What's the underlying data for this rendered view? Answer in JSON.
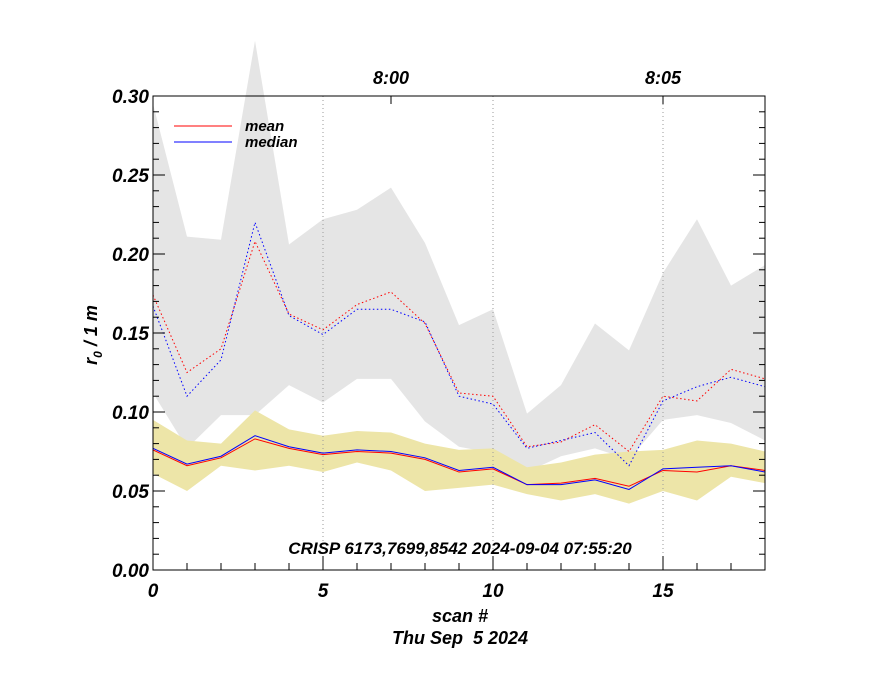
{
  "chart_data": {
    "type": "line",
    "title": "CRISP 6173,7699,8542 2024-09-04 07:55:20",
    "xlabel": "scan #",
    "date_label": "Thu Sep  5 2024",
    "ylabel_main": "r",
    "ylabel_sub": "0",
    "ylabel_rest": " / 1 m",
    "xlim": [
      0,
      18
    ],
    "ylim": [
      0,
      0.3
    ],
    "x_ticks": [
      0,
      5,
      10,
      15
    ],
    "x_tick_labels": [
      "0",
      "5",
      "10",
      "15"
    ],
    "y_ticks": [
      0,
      0.05,
      0.1,
      0.15,
      0.2,
      0.25,
      0.3
    ],
    "y_tick_labels": [
      "0.00",
      "0.05",
      "0.10",
      "0.15",
      "0.20",
      "0.25",
      "0.30"
    ],
    "top_axis": {
      "ticks": [
        7,
        15
      ],
      "labels": [
        "8:00",
        "8:05"
      ],
      "gridlines": [
        5,
        10,
        15
      ]
    },
    "x": [
      0,
      1,
      2,
      3,
      4,
      5,
      6,
      7,
      8,
      9,
      10,
      11,
      12,
      13,
      14,
      15,
      16,
      17,
      18
    ],
    "series": [
      {
        "name": "mean",
        "role": "low_r0_mean",
        "color": "#ff0000",
        "style": "solid",
        "values": [
          0.076,
          0.066,
          0.071,
          0.083,
          0.077,
          0.073,
          0.075,
          0.074,
          0.07,
          0.062,
          0.064,
          0.054,
          0.055,
          0.058,
          0.053,
          0.063,
          0.062,
          0.066,
          0.063
        ]
      },
      {
        "name": "median",
        "role": "low_r0_median",
        "color": "#0000ff",
        "style": "solid",
        "values": [
          0.077,
          0.067,
          0.072,
          0.085,
          0.078,
          0.074,
          0.076,
          0.075,
          0.071,
          0.063,
          0.065,
          0.054,
          0.054,
          0.057,
          0.051,
          0.064,
          0.065,
          0.066,
          0.062
        ]
      },
      {
        "name": "mean_dotted",
        "role": "high_r0_mean",
        "color": "#ff0000",
        "style": "dotted",
        "values": [
          0.174,
          0.125,
          0.14,
          0.208,
          0.162,
          0.152,
          0.168,
          0.176,
          0.156,
          0.112,
          0.11,
          0.078,
          0.081,
          0.092,
          0.075,
          0.11,
          0.107,
          0.127,
          0.121
        ]
      },
      {
        "name": "median_dotted",
        "role": "high_r0_median",
        "color": "#0000ff",
        "style": "dotted",
        "values": [
          0.167,
          0.11,
          0.133,
          0.22,
          0.161,
          0.149,
          0.165,
          0.165,
          0.157,
          0.11,
          0.105,
          0.077,
          0.082,
          0.087,
          0.066,
          0.107,
          0.116,
          0.122,
          0.116
        ]
      }
    ],
    "bands": [
      {
        "name": "gray_range",
        "color": "#e5e5e5",
        "upper": [
          0.295,
          0.211,
          0.209,
          0.335,
          0.206,
          0.222,
          0.228,
          0.242,
          0.207,
          0.155,
          0.165,
          0.099,
          0.117,
          0.156,
          0.139,
          0.188,
          0.222,
          0.18,
          0.193
        ],
        "lower": [
          0.112,
          0.077,
          0.098,
          0.098,
          0.117,
          0.106,
          0.121,
          0.121,
          0.094,
          0.078,
          0.074,
          0.062,
          0.072,
          0.077,
          0.07,
          0.095,
          0.098,
          0.093,
          0.082
        ]
      },
      {
        "name": "yellow_range",
        "color": "#ede5a8",
        "upper": [
          0.095,
          0.082,
          0.08,
          0.101,
          0.089,
          0.085,
          0.088,
          0.087,
          0.08,
          0.076,
          0.077,
          0.065,
          0.068,
          0.073,
          0.075,
          0.076,
          0.082,
          0.08,
          0.075
        ],
        "lower": [
          0.061,
          0.05,
          0.066,
          0.063,
          0.066,
          0.062,
          0.068,
          0.063,
          0.05,
          0.052,
          0.054,
          0.048,
          0.044,
          0.048,
          0.042,
          0.05,
          0.044,
          0.059,
          0.055
        ]
      }
    ],
    "legend": [
      {
        "label": "mean",
        "color": "#ff0000"
      },
      {
        "label": "median",
        "color": "#0000ff"
      }
    ],
    "legend_position": "top-left",
    "grid": false
  }
}
